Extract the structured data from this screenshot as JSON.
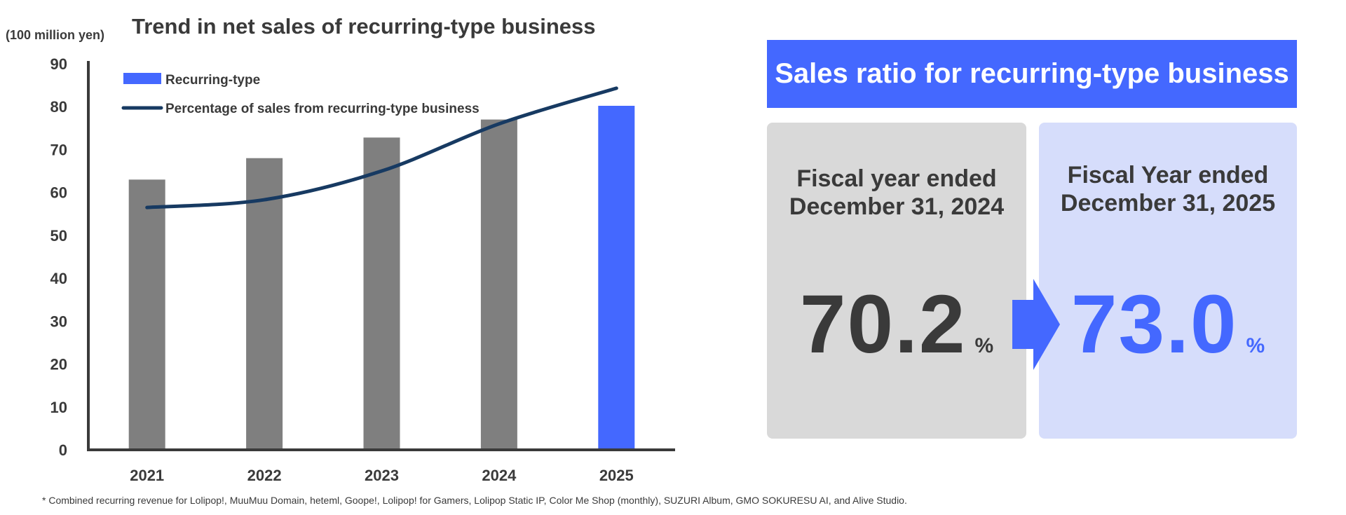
{
  "chart_data": [
    {
      "type": "bar",
      "title": "Trend in net sales of recurring-type business",
      "unit_label": "(100 million yen)",
      "ylabel": "",
      "xlabel": "",
      "ylim": [
        0,
        90
      ],
      "yticks": [
        0,
        10,
        20,
        30,
        40,
        50,
        60,
        70,
        80,
        90
      ],
      "categories": [
        "2021",
        "2022",
        "2023",
        "2024",
        "2025"
      ],
      "series": [
        {
          "name": "Recurring-type",
          "kind": "bar",
          "values": [
            63,
            68,
            72.8,
            77,
            80.2
          ],
          "colors": [
            "#7f7f7f",
            "#7f7f7f",
            "#7f7f7f",
            "#7f7f7f",
            "#4468ff"
          ]
        },
        {
          "name": "Percentage of sales from recurring-type business",
          "kind": "line",
          "values": [
            56.5,
            58.3,
            65,
            76,
            84.3
          ],
          "color": "#173a62"
        }
      ],
      "legend_position": "top-left",
      "grid": false
    },
    {
      "type": "table",
      "title": "Sales ratio for recurring-type business",
      "columns": [
        "Fiscal year ended December 31, 2024",
        "Fiscal Year ended December 31, 2025"
      ],
      "values": [
        70.2,
        73.0
      ],
      "unit": "%"
    }
  ],
  "chart": {
    "unit_label": "(100 million yen)",
    "title": "Trend in net sales of recurring-type business",
    "legend_bar": "Recurring-type",
    "legend_line": "Percentage of sales from recurring-type business"
  },
  "ratio": {
    "header": "Sales ratio for recurring-type business",
    "prev": {
      "line1": "Fiscal year ended",
      "line2": "December 31, 2024",
      "value": "70.2",
      "unit": "%"
    },
    "curr": {
      "line1": "Fiscal Year ended",
      "line2": "December 31, 2025",
      "value": "73.0",
      "unit": "%"
    }
  },
  "footnote": "* Combined recurring revenue for Lolipop!, MuuMuu Domain, heteml, Goope!, Lolipop! for Gamers, Lolipop Static IP, Color Me Shop (monthly), SUZURI Album, GMO SOKURESU AI, and Alive Studio.",
  "colors": {
    "accent": "#4468ff",
    "bar_gray": "#7f7f7f",
    "line": "#173a62",
    "panel_gray": "#d9d9d9",
    "panel_blue": "#d6ddfb",
    "text": "#3a3a3a"
  }
}
